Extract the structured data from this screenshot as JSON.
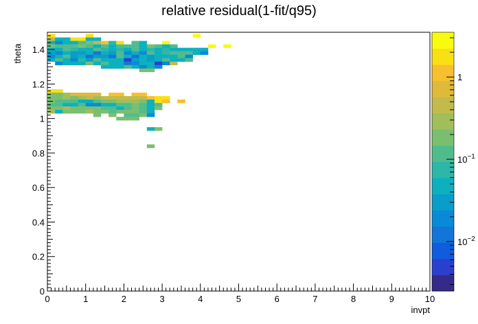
{
  "chart_data": {
    "type": "heatmap",
    "title": "relative residual(1-fit/q95)",
    "xlabel": "invpt",
    "ylabel": "theta",
    "xlim": [
      0,
      10
    ],
    "ylim": [
      0,
      1.5
    ],
    "x_ticks": [
      "0",
      "1",
      "2",
      "3",
      "4",
      "5",
      "6",
      "7",
      "8",
      "9",
      "10"
    ],
    "y_ticks": [
      "0",
      "0.2",
      "0.4",
      "0.6",
      "0.8",
      "1",
      "1.2",
      "1.4"
    ],
    "colorbar": {
      "scale": "log",
      "range": [
        0.0025,
        3.5
      ],
      "tick_labels": [
        {
          "label": "10",
          "exp": "−2",
          "value": 0.01
        },
        {
          "label": "10",
          "exp": "−1",
          "value": 0.1
        },
        {
          "label": "1",
          "exp": "",
          "value": 1
        }
      ],
      "palette": [
        "#352a87",
        "#2b3fcf",
        "#0f5cdd",
        "#1276d8",
        "#078bd6",
        "#089ec9",
        "#0db0bf",
        "#2cb7a9",
        "#50bc8e",
        "#7abf6f",
        "#a0be5a",
        "#c2bb4b",
        "#dfb93a",
        "#f6c02f",
        "#f9e015",
        "#f9fb0e"
      ]
    },
    "bin_size": {
      "dx": 0.2,
      "dy": 0.02
    },
    "rows": [
      {
        "y": 1.48,
        "cells": [
          [
            0.1,
            2.0
          ],
          [
            1.1,
            2.0
          ],
          [
            3.9,
            3.0
          ]
        ]
      },
      {
        "y": 1.46,
        "cells": [
          [
            0.1,
            0.5
          ],
          [
            0.3,
            0.05
          ],
          [
            0.5,
            0.05
          ],
          [
            0.7,
            2.0
          ],
          [
            0.9,
            2.0
          ],
          [
            1.1,
            0.05
          ],
          [
            1.3,
            0.05
          ]
        ]
      },
      {
        "y": 1.44,
        "cells": [
          [
            0.1,
            0.05
          ],
          [
            0.3,
            0.02
          ],
          [
            0.5,
            0.05
          ],
          [
            0.7,
            0.05
          ],
          [
            0.9,
            0.1
          ],
          [
            1.1,
            0.2
          ],
          [
            1.3,
            0.4
          ],
          [
            1.5,
            1.0
          ],
          [
            1.7,
            0.08
          ],
          [
            1.9,
            2.0
          ],
          [
            2.3,
            0.1
          ],
          [
            2.5,
            0.05
          ],
          [
            3.1,
            3.0
          ]
        ]
      },
      {
        "y": 1.42,
        "cells": [
          [
            0.1,
            0.2
          ],
          [
            0.3,
            0.1
          ],
          [
            0.5,
            0.1
          ],
          [
            0.7,
            0.1
          ],
          [
            0.9,
            0.2
          ],
          [
            1.1,
            0.1
          ],
          [
            1.3,
            0.05
          ],
          [
            1.5,
            0.1
          ],
          [
            1.7,
            0.05
          ],
          [
            1.9,
            0.1
          ],
          [
            2.1,
            0.1
          ],
          [
            2.3,
            0.1
          ],
          [
            2.5,
            0.05
          ],
          [
            2.7,
            0.2
          ],
          [
            2.9,
            0.1
          ],
          [
            3.1,
            0.05
          ],
          [
            3.3,
            0.1
          ],
          [
            4.3,
            3.0
          ],
          [
            4.7,
            3.0
          ]
        ]
      },
      {
        "y": 1.4,
        "cells": [
          [
            0.1,
            0.05
          ],
          [
            0.3,
            0.05
          ],
          [
            0.5,
            0.1
          ],
          [
            0.7,
            0.08
          ],
          [
            0.9,
            0.05
          ],
          [
            1.1,
            0.05
          ],
          [
            1.3,
            0.1
          ],
          [
            1.5,
            0.08
          ],
          [
            1.7,
            0.05
          ],
          [
            1.9,
            0.08
          ],
          [
            2.1,
            0.05
          ],
          [
            2.3,
            0.1
          ],
          [
            2.5,
            0.05
          ],
          [
            2.7,
            0.08
          ],
          [
            2.9,
            0.05
          ],
          [
            3.1,
            0.08
          ],
          [
            3.3,
            0.05
          ],
          [
            3.5,
            0.05
          ],
          [
            3.7,
            0.05
          ],
          [
            3.9,
            0.05
          ],
          [
            4.1,
            0.05
          ]
        ]
      },
      {
        "y": 1.38,
        "cells": [
          [
            0.1,
            0.03
          ],
          [
            0.3,
            0.02
          ],
          [
            0.5,
            0.05
          ],
          [
            0.7,
            0.03
          ],
          [
            0.9,
            0.03
          ],
          [
            1.1,
            0.05
          ],
          [
            1.3,
            0.015
          ],
          [
            1.5,
            0.05
          ],
          [
            1.7,
            0.03
          ],
          [
            1.9,
            0.1
          ],
          [
            2.1,
            0.02
          ],
          [
            2.3,
            0.05
          ],
          [
            2.5,
            0.02
          ],
          [
            2.7,
            0.1
          ],
          [
            2.9,
            0.05
          ],
          [
            3.1,
            0.08
          ],
          [
            3.3,
            0.1
          ],
          [
            3.5,
            0.1
          ],
          [
            3.7,
            0.1
          ],
          [
            3.9,
            0.05
          ],
          [
            4.1,
            0.02
          ]
        ]
      },
      {
        "y": 1.36,
        "cells": [
          [
            0.1,
            0.02
          ],
          [
            0.3,
            0.05
          ],
          [
            0.5,
            0.1
          ],
          [
            0.7,
            0.03
          ],
          [
            0.9,
            0.05
          ],
          [
            1.1,
            0.01
          ],
          [
            1.3,
            0.03
          ],
          [
            1.5,
            0.03
          ],
          [
            1.7,
            0.015
          ],
          [
            1.9,
            0.1
          ],
          [
            2.1,
            0.05
          ],
          [
            2.3,
            0.015
          ],
          [
            2.5,
            0.05
          ],
          [
            2.7,
            0.03
          ],
          [
            2.9,
            0.05
          ],
          [
            3.1,
            0.05
          ],
          [
            3.3,
            0.05
          ],
          [
            3.5,
            0.1
          ],
          [
            3.7,
            0.02
          ]
        ]
      },
      {
        "y": 1.34,
        "cells": [
          [
            0.1,
            0.05
          ],
          [
            0.3,
            0.1
          ],
          [
            0.5,
            0.05
          ],
          [
            0.7,
            0.02
          ],
          [
            0.9,
            0.08
          ],
          [
            1.1,
            0.03
          ],
          [
            1.3,
            0.1
          ],
          [
            1.5,
            0.05
          ],
          [
            1.7,
            0.05
          ],
          [
            1.9,
            0.05
          ],
          [
            2.1,
            0.005
          ],
          [
            2.3,
            0.03
          ],
          [
            2.5,
            0.05
          ],
          [
            2.7,
            0.03
          ],
          [
            2.9,
            0.05
          ],
          [
            3.1,
            0.1
          ],
          [
            3.3,
            0.05
          ],
          [
            3.5,
            0.05
          ],
          [
            3.7,
            0.1
          ]
        ]
      },
      {
        "y": 1.32,
        "cells": [
          [
            0.3,
            0.02
          ],
          [
            0.5,
            0.05
          ],
          [
            0.7,
            0.05
          ],
          [
            0.9,
            0.05
          ],
          [
            1.1,
            0.2
          ],
          [
            1.3,
            0.05
          ],
          [
            1.5,
            0.1
          ],
          [
            1.7,
            0.05
          ],
          [
            1.9,
            0.05
          ],
          [
            2.1,
            0.01
          ],
          [
            2.3,
            0.02
          ],
          [
            2.5,
            0.05
          ],
          [
            2.7,
            0.05
          ],
          [
            2.9,
            0.005
          ],
          [
            3.1,
            0.02
          ],
          [
            3.3,
            0.5
          ]
        ]
      },
      {
        "y": 1.3,
        "cells": [
          [
            1.5,
            0.05
          ],
          [
            1.7,
            0.05
          ],
          [
            1.9,
            0.05
          ],
          [
            2.1,
            0.1
          ],
          [
            2.3,
            0.05
          ],
          [
            2.5,
            0.02
          ],
          [
            2.7,
            0.05
          ],
          [
            2.9,
            0.02
          ]
        ]
      },
      {
        "y": 1.28,
        "cells": [
          [
            2.5,
            0.2
          ],
          [
            2.7,
            0.2
          ]
        ]
      },
      {
        "y": 1.16,
        "cells": [
          [
            0.1,
            2.0
          ],
          [
            0.3,
            2.0
          ]
        ]
      },
      {
        "y": 1.14,
        "cells": [
          [
            0.1,
            0.2
          ],
          [
            0.3,
            0.2
          ],
          [
            0.5,
            0.3
          ],
          [
            0.7,
            0.8
          ],
          [
            0.9,
            0.8
          ],
          [
            1.1,
            0.8
          ],
          [
            1.3,
            0.8
          ],
          [
            1.7,
            1.0
          ],
          [
            1.9,
            1.0
          ],
          [
            2.3,
            1.0
          ],
          [
            2.5,
            1.0
          ]
        ]
      },
      {
        "y": 1.12,
        "cells": [
          [
            0.1,
            0.2
          ],
          [
            0.3,
            0.2
          ],
          [
            0.5,
            0.3
          ],
          [
            0.7,
            0.2
          ],
          [
            0.9,
            0.3
          ],
          [
            1.1,
            0.4
          ],
          [
            1.3,
            0.3
          ],
          [
            1.5,
            0.4
          ],
          [
            1.7,
            0.5
          ],
          [
            1.9,
            0.5
          ],
          [
            2.1,
            0.5
          ],
          [
            2.3,
            0.5
          ],
          [
            2.5,
            0.5
          ],
          [
            2.7,
            1.0
          ],
          [
            2.9,
            2.0
          ],
          [
            3.1,
            2.0
          ]
        ]
      },
      {
        "y": 1.1,
        "cells": [
          [
            0.1,
            0.2
          ],
          [
            0.3,
            0.1
          ],
          [
            0.5,
            0.1
          ],
          [
            0.7,
            0.1
          ],
          [
            0.9,
            0.05
          ],
          [
            1.1,
            0.05
          ],
          [
            1.3,
            0.1
          ],
          [
            1.5,
            0.2
          ],
          [
            1.7,
            0.2
          ],
          [
            1.9,
            0.3
          ],
          [
            2.1,
            0.3
          ],
          [
            2.3,
            0.3
          ],
          [
            2.5,
            0.2
          ],
          [
            2.7,
            0.05
          ],
          [
            2.9,
            2.0
          ],
          [
            3.1,
            1.0
          ],
          [
            3.5,
            1.0
          ]
        ]
      },
      {
        "y": 1.08,
        "cells": [
          [
            0.1,
            0.1
          ],
          [
            0.3,
            0.1
          ],
          [
            0.5,
            0.05
          ],
          [
            0.7,
            0.05
          ],
          [
            0.9,
            0.1
          ],
          [
            1.1,
            0.02
          ],
          [
            1.3,
            0.02
          ],
          [
            1.5,
            0.05
          ],
          [
            1.7,
            0.05
          ],
          [
            1.9,
            0.1
          ],
          [
            2.1,
            0.1
          ],
          [
            2.3,
            0.2
          ],
          [
            2.5,
            0.1
          ],
          [
            2.7,
            0.05
          ],
          [
            2.9,
            0.1
          ]
        ]
      },
      {
        "y": 1.06,
        "cells": [
          [
            0.1,
            0.2
          ],
          [
            0.3,
            0.2
          ],
          [
            0.5,
            0.3
          ],
          [
            0.7,
            0.2
          ],
          [
            0.9,
            0.2
          ],
          [
            1.1,
            0.2
          ],
          [
            1.3,
            0.2
          ],
          [
            1.5,
            0.1
          ],
          [
            1.7,
            0.1
          ],
          [
            1.9,
            0.05
          ],
          [
            2.1,
            0.1
          ],
          [
            2.3,
            0.2
          ],
          [
            2.5,
            0.1
          ],
          [
            2.7,
            0.05
          ],
          [
            2.9,
            0.2
          ]
        ]
      },
      {
        "y": 1.04,
        "cells": [
          [
            0.1,
            0.3
          ],
          [
            0.3,
            0.05
          ],
          [
            0.5,
            0.2
          ],
          [
            0.7,
            0.2
          ],
          [
            0.9,
            0.2
          ],
          [
            1.1,
            0.3
          ],
          [
            1.3,
            0.2
          ],
          [
            1.5,
            0.2
          ],
          [
            1.7,
            0.1
          ],
          [
            1.9,
            0.2
          ],
          [
            2.1,
            0.2
          ],
          [
            2.3,
            0.2
          ],
          [
            2.5,
            0.1
          ],
          [
            2.7,
            0.05
          ]
        ]
      },
      {
        "y": 1.02,
        "cells": [
          [
            1.3,
            0.2
          ],
          [
            1.7,
            0.2
          ],
          [
            2.1,
            0.1
          ],
          [
            2.3,
            0.1
          ],
          [
            2.5,
            0.2
          ],
          [
            2.7,
            0.02
          ]
        ]
      },
      {
        "y": 1.0,
        "cells": [
          [
            1.9,
            0.2
          ],
          [
            2.1,
            0.2
          ],
          [
            2.3,
            0.2
          ]
        ]
      },
      {
        "y": 0.94,
        "cells": [
          [
            2.7,
            0.05
          ],
          [
            2.9,
            0.2
          ]
        ]
      },
      {
        "y": 0.84,
        "cells": [
          [
            2.7,
            0.2
          ]
        ]
      }
    ]
  }
}
